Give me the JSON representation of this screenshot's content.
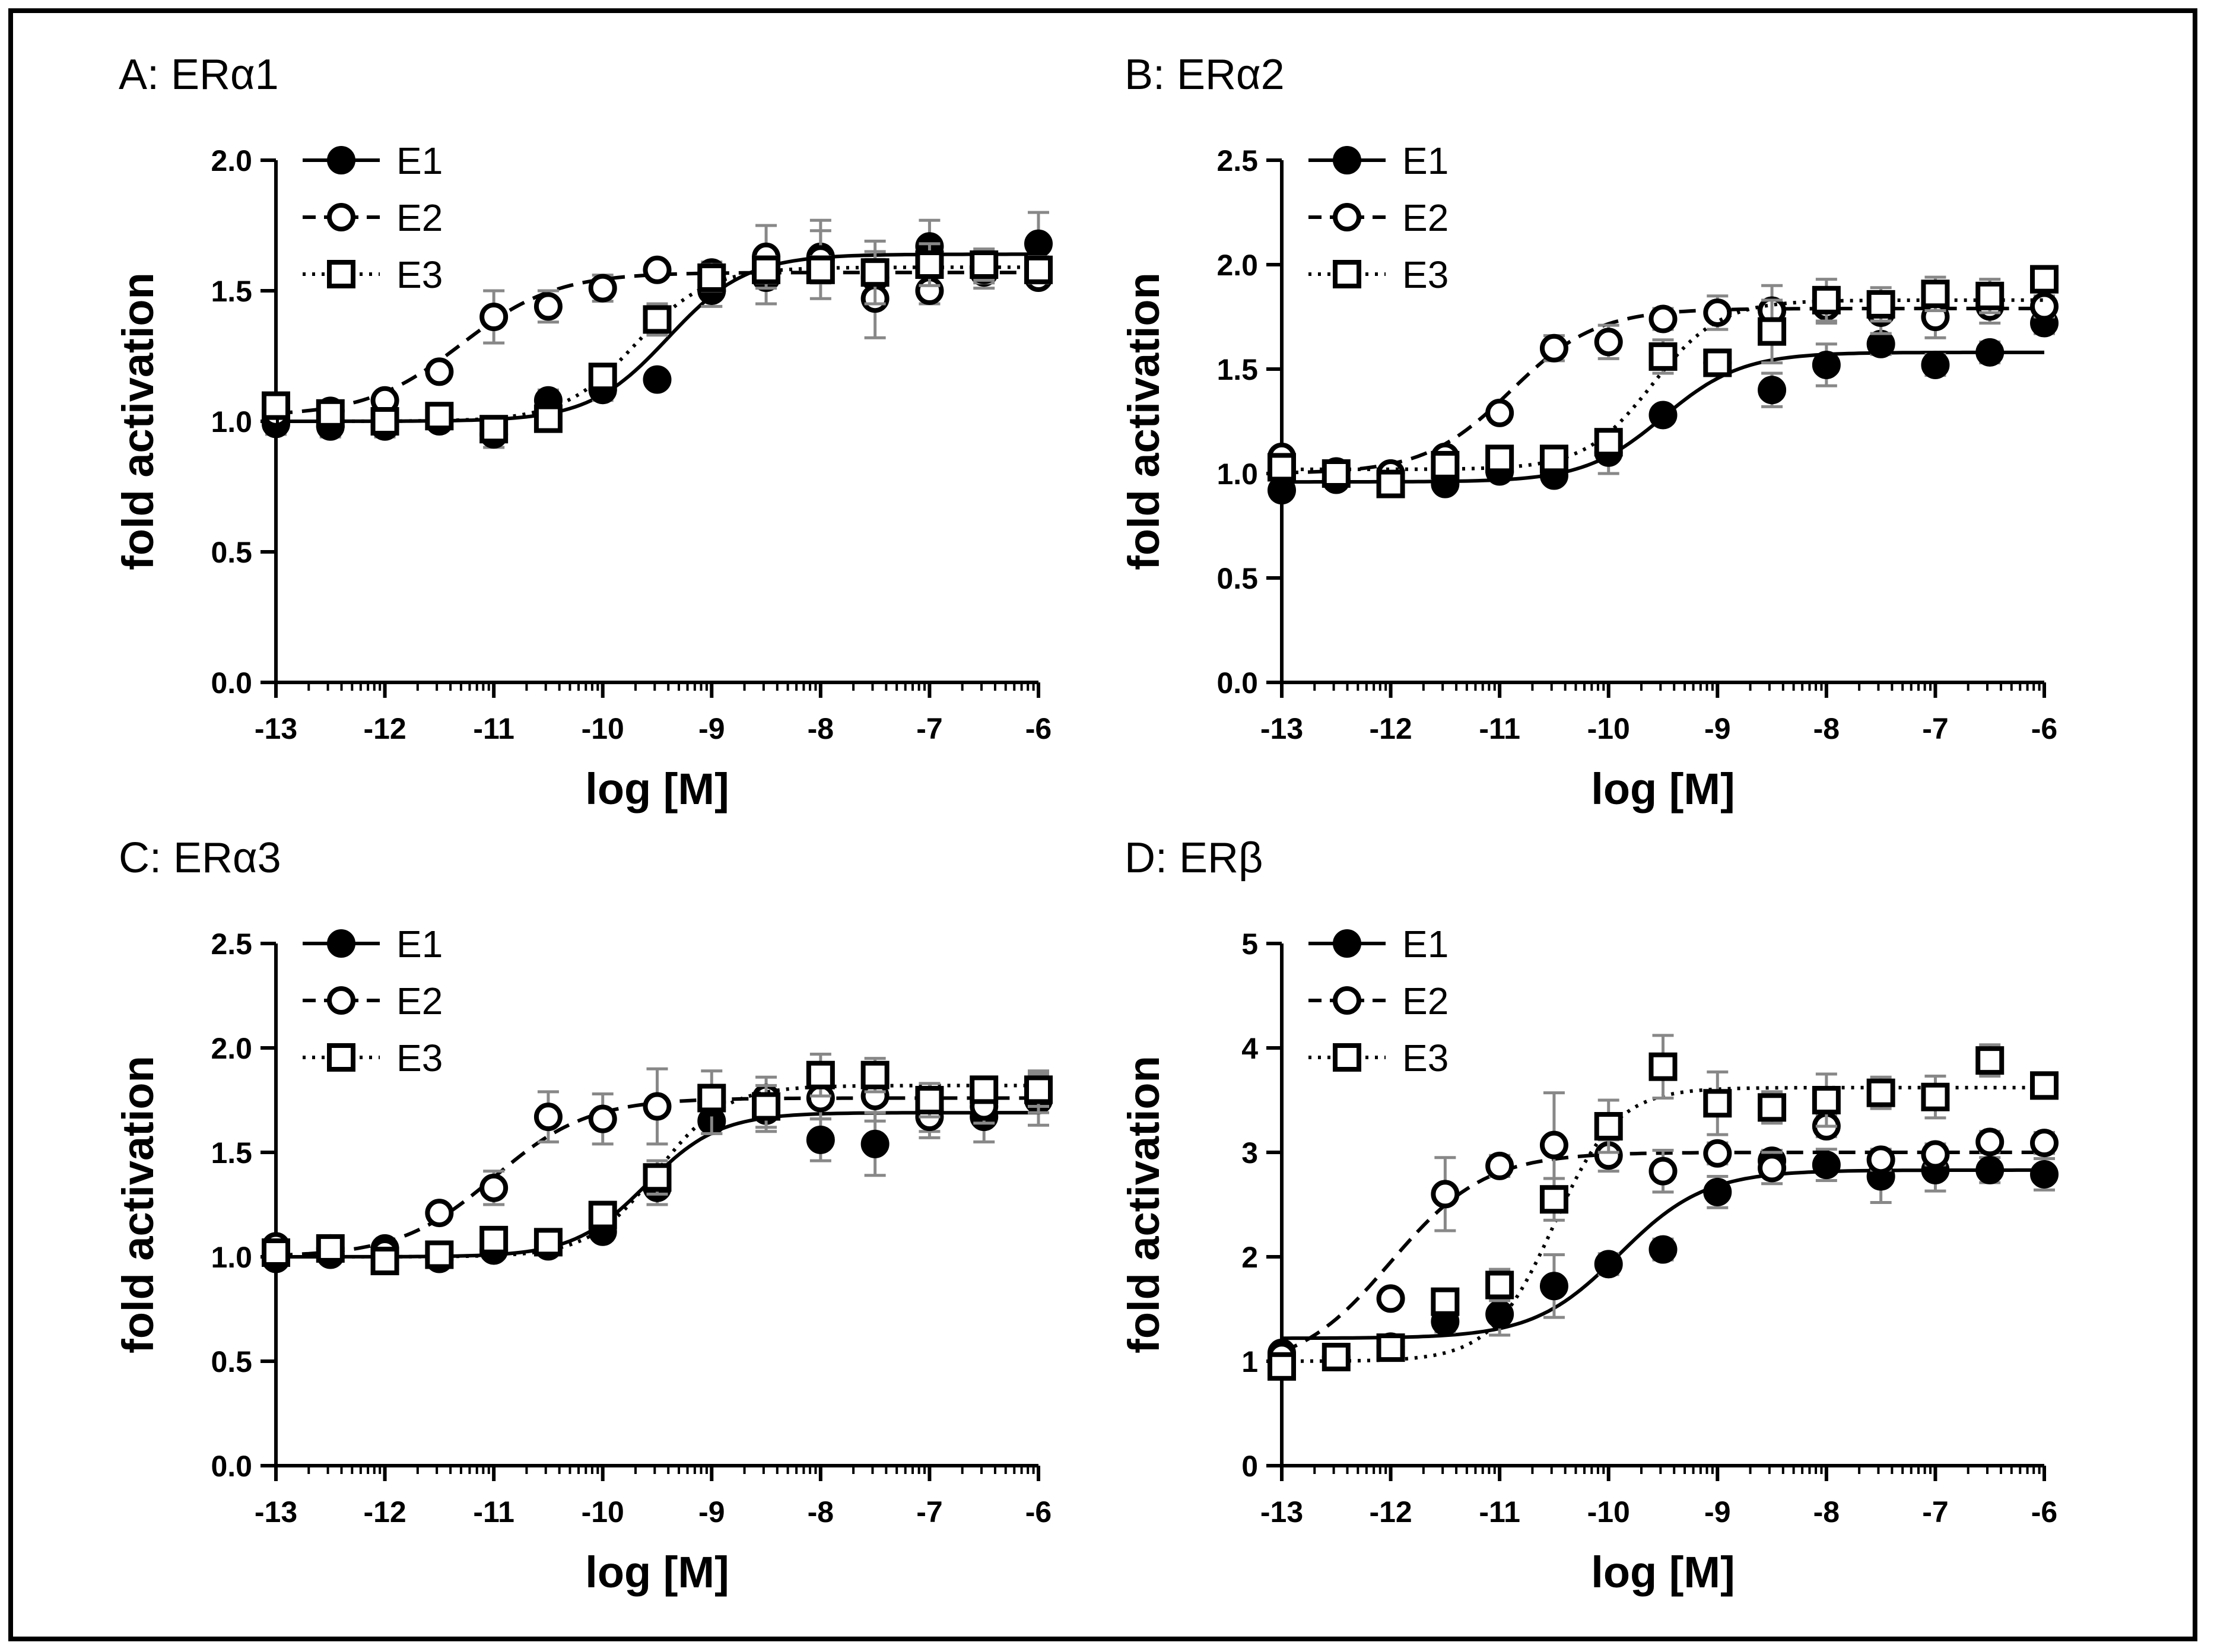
{
  "chart_data": [
    {
      "panel": "A",
      "title": "A: ERα1",
      "type": "scatter",
      "xlabel": "log [M]",
      "ylabel": "fold activation",
      "xlim": [
        -13,
        -6
      ],
      "ylim": [
        0,
        2.0
      ],
      "xticks": [
        -13,
        -12,
        -11,
        -10,
        -9,
        -8,
        -7,
        -6
      ],
      "xtick_labels": [
        "-13",
        "-12",
        "-11",
        "-10",
        "-9",
        "-8",
        "-7",
        "-6"
      ],
      "yticks": [
        0,
        0.5,
        1.0,
        1.5,
        2.0
      ],
      "ytick_labels": [
        "0.0",
        "0.5",
        "1.0",
        "1.5",
        "2.0"
      ],
      "x": [
        -13,
        -12.5,
        -12,
        -11.5,
        -11,
        -10.5,
        -10,
        -9.5,
        -9,
        -8.5,
        -8,
        -7.5,
        -7,
        -6.5,
        -6
      ],
      "series": [
        {
          "name": "E1",
          "marker": "filled-circle",
          "line": "solid",
          "values": [
            0.99,
            0.98,
            0.98,
            1.0,
            0.95,
            1.08,
            1.12,
            1.16,
            1.5,
            1.55,
            1.63,
            1.55,
            1.67,
            1.57,
            1.68
          ],
          "errors": [
            0.04,
            0.04,
            0.04,
            0.03,
            0.05,
            0.04,
            0.04,
            0.03,
            0.06,
            0.1,
            0.1,
            0.1,
            0.1,
            0.06,
            0.12
          ],
          "fit": {
            "bottom": 1.0,
            "top": 1.64,
            "logec50": -9.4,
            "hill": 1.2
          }
        },
        {
          "name": "E2",
          "marker": "open-circle",
          "line": "dashed",
          "values": [
            1.03,
            1.04,
            1.08,
            1.19,
            1.4,
            1.44,
            1.51,
            1.58,
            1.57,
            1.63,
            1.62,
            1.47,
            1.5,
            1.58,
            1.55
          ],
          "errors": [
            0.03,
            0.03,
            0.03,
            0.03,
            0.1,
            0.06,
            0.05,
            0.03,
            0.04,
            0.12,
            0.15,
            0.15,
            0.05,
            0.05,
            0.03
          ],
          "fit": {
            "bottom": 1.02,
            "top": 1.57,
            "logec50": -11.3,
            "hill": 1.0
          }
        },
        {
          "name": "E3",
          "marker": "open-square",
          "line": "dotted",
          "values": [
            1.06,
            1.03,
            1.0,
            1.02,
            0.97,
            1.01,
            1.17,
            1.39,
            1.55,
            1.58,
            1.58,
            1.57,
            1.6,
            1.6,
            1.58
          ],
          "errors": [
            0.03,
            0.03,
            0.03,
            0.03,
            0.03,
            0.03,
            0.04,
            0.06,
            0.05,
            0.05,
            0.05,
            0.12,
            0.08,
            0.06,
            0.05
          ],
          "fit": {
            "bottom": 1.0,
            "top": 1.59,
            "logec50": -9.7,
            "hill": 1.3
          }
        }
      ]
    },
    {
      "panel": "B",
      "title": "B: ERα2",
      "type": "scatter",
      "xlabel": "log [M]",
      "ylabel": "fold activation",
      "xlim": [
        -13,
        -6
      ],
      "ylim": [
        0,
        2.5
      ],
      "xticks": [
        -13,
        -12,
        -11,
        -10,
        -9,
        -8,
        -7,
        -6
      ],
      "xtick_labels": [
        "-13",
        "-12",
        "-11",
        "-10",
        "-9",
        "-8",
        "-7",
        "-6"
      ],
      "yticks": [
        0,
        0.5,
        1.0,
        1.5,
        2.0,
        2.5
      ],
      "ytick_labels": [
        "0.0",
        "0.5",
        "1.0",
        "1.5",
        "2.0",
        "2.5"
      ],
      "x": [
        -13,
        -12.5,
        -12,
        -11.5,
        -11,
        -10.5,
        -10,
        -9.5,
        -9,
        -8.5,
        -8,
        -7.5,
        -7,
        -6.5,
        -6
      ],
      "series": [
        {
          "name": "E1",
          "marker": "filled-circle",
          "line": "solid",
          "values": [
            0.92,
            0.97,
            1.0,
            0.95,
            1.01,
            0.99,
            1.1,
            1.28,
            1.53,
            1.4,
            1.52,
            1.62,
            1.52,
            1.58,
            1.72
          ],
          "errors": [
            0.04,
            0.04,
            0.04,
            0.03,
            0.03,
            0.03,
            0.1,
            0.04,
            0.06,
            0.08,
            0.1,
            0.05,
            0.05,
            0.05,
            0.05
          ],
          "fit": {
            "bottom": 0.96,
            "top": 1.58,
            "logec50": -9.5,
            "hill": 1.2
          }
        },
        {
          "name": "E2",
          "marker": "open-circle",
          "line": "dashed",
          "values": [
            1.08,
            1.01,
            1.0,
            1.08,
            1.29,
            1.6,
            1.63,
            1.74,
            1.77,
            1.78,
            1.8,
            1.77,
            1.75,
            1.8,
            1.8
          ],
          "errors": [
            0.04,
            0.03,
            0.03,
            0.03,
            0.04,
            0.06,
            0.08,
            0.05,
            0.08,
            0.12,
            0.08,
            0.1,
            0.1,
            0.08,
            0.05
          ],
          "fit": {
            "bottom": 1.0,
            "top": 1.79,
            "logec50": -10.9,
            "hill": 1.1
          }
        },
        {
          "name": "E3",
          "marker": "open-square",
          "line": "dotted",
          "values": [
            1.03,
            1.0,
            0.95,
            1.04,
            1.07,
            1.07,
            1.15,
            1.56,
            1.53,
            1.68,
            1.83,
            1.81,
            1.86,
            1.85,
            1.93
          ],
          "errors": [
            0.03,
            0.03,
            0.03,
            0.03,
            0.03,
            0.03,
            0.05,
            0.08,
            0.06,
            0.15,
            0.1,
            0.08,
            0.08,
            0.08,
            0.05
          ],
          "fit": {
            "bottom": 1.02,
            "top": 1.83,
            "logec50": -9.6,
            "hill": 1.4
          }
        }
      ]
    },
    {
      "panel": "C",
      "title": "C: ERα3",
      "type": "scatter",
      "xlabel": "log [M]",
      "ylabel": "fold activation",
      "xlim": [
        -13,
        -6
      ],
      "ylim": [
        0,
        2.5
      ],
      "xticks": [
        -13,
        -12,
        -11,
        -10,
        -9,
        -8,
        -7,
        -6
      ],
      "xtick_labels": [
        "-13",
        "-12",
        "-11",
        "-10",
        "-9",
        "-8",
        "-7",
        "-6"
      ],
      "yticks": [
        0,
        0.5,
        1.0,
        1.5,
        2.0,
        2.5
      ],
      "ytick_labels": [
        "0.0",
        "0.5",
        "1.0",
        "1.5",
        "2.0",
        "2.5"
      ],
      "x": [
        -13,
        -12.5,
        -12,
        -11.5,
        -11,
        -10.5,
        -10,
        -9.5,
        -9,
        -8.5,
        -8,
        -7.5,
        -7,
        -6.5,
        -6
      ],
      "series": [
        {
          "name": "E1",
          "marker": "filled-circle",
          "line": "solid",
          "values": [
            0.99,
            1.01,
            1.04,
            0.99,
            1.03,
            1.05,
            1.12,
            1.33,
            1.65,
            1.7,
            1.56,
            1.54,
            1.7,
            1.67,
            1.75
          ],
          "errors": [
            0.03,
            0.03,
            0.03,
            0.03,
            0.03,
            0.03,
            0.04,
            0.08,
            0.06,
            0.1,
            0.1,
            0.15,
            0.1,
            0.12,
            0.12
          ],
          "fit": {
            "bottom": 1.0,
            "top": 1.69,
            "logec50": -9.6,
            "hill": 1.3
          }
        },
        {
          "name": "E2",
          "marker": "open-circle",
          "line": "dashed",
          "values": [
            1.05,
            1.04,
            1.02,
            1.21,
            1.33,
            1.67,
            1.66,
            1.72,
            1.74,
            1.76,
            1.76,
            1.77,
            1.67,
            1.72,
            1.79
          ],
          "errors": [
            0.03,
            0.03,
            0.03,
            0.03,
            0.08,
            0.12,
            0.12,
            0.18,
            0.15,
            0.1,
            0.1,
            0.12,
            0.1,
            0.08,
            0.1
          ],
          "fit": {
            "bottom": 1.0,
            "top": 1.76,
            "logec50": -11.0,
            "hill": 1.0
          }
        },
        {
          "name": "E3",
          "marker": "open-square",
          "line": "dotted",
          "values": [
            1.02,
            1.04,
            0.98,
            1.01,
            1.08,
            1.07,
            1.2,
            1.38,
            1.76,
            1.72,
            1.87,
            1.87,
            1.75,
            1.8,
            1.8
          ],
          "errors": [
            0.03,
            0.03,
            0.03,
            0.03,
            0.03,
            0.03,
            0.04,
            0.08,
            0.06,
            0.1,
            0.1,
            0.08,
            0.08,
            0.06,
            0.08
          ],
          "fit": {
            "bottom": 1.0,
            "top": 1.82,
            "logec50": -9.5,
            "hill": 1.4
          }
        }
      ]
    },
    {
      "panel": "D",
      "title": "D: ERβ",
      "type": "scatter",
      "xlabel": "log [M]",
      "ylabel": "fold activation",
      "xlim": [
        -13,
        -6
      ],
      "ylim": [
        0,
        5
      ],
      "xticks": [
        -13,
        -12,
        -11,
        -10,
        -9,
        -8,
        -7,
        -6
      ],
      "xtick_labels": [
        "-13",
        "-12",
        "-11",
        "-10",
        "-9",
        "-8",
        "-7",
        "-6"
      ],
      "yticks": [
        0,
        1,
        2,
        3,
        4,
        5
      ],
      "ytick_labels": [
        "0",
        "1",
        "2",
        "3",
        "4",
        "5"
      ],
      "x": [
        -13,
        -12.5,
        -12,
        -11.5,
        -11,
        -10.5,
        -10,
        -9.5,
        -9,
        -8.5,
        -8,
        -7.5,
        -7,
        -6.5,
        -6
      ],
      "series": [
        {
          "name": "E1",
          "marker": "filled-circle",
          "line": "solid",
          "values": [
            1.08,
            1.04,
            1.14,
            1.38,
            1.45,
            1.72,
            1.93,
            2.07,
            2.62,
            2.92,
            2.88,
            2.77,
            2.83,
            2.83,
            2.79
          ],
          "errors": [
            0.05,
            0.05,
            0.08,
            0.1,
            0.2,
            0.3,
            0.1,
            0.1,
            0.15,
            0.1,
            0.15,
            0.25,
            0.2,
            0.12,
            0.15
          ],
          "fit": {
            "bottom": 1.22,
            "top": 2.83,
            "logec50": -9.9,
            "hill": 1.1
          }
        },
        {
          "name": "E2",
          "marker": "open-circle",
          "line": "dashed",
          "values": [
            1.05,
            1.04,
            1.6,
            2.6,
            2.87,
            3.07,
            2.97,
            2.82,
            2.99,
            2.85,
            3.25,
            2.93,
            2.98,
            3.1,
            3.09
          ],
          "errors": [
            0.05,
            0.05,
            0.05,
            0.35,
            0.1,
            0.5,
            0.15,
            0.2,
            0.1,
            0.15,
            0.1,
            0.1,
            0.1,
            0.1,
            0.1
          ],
          "fit": {
            "bottom": 0.9,
            "top": 3.0,
            "logec50": -12.0,
            "hill": 1.0
          }
        },
        {
          "name": "E3",
          "marker": "open-square",
          "line": "dotted",
          "values": [
            0.95,
            1.04,
            1.13,
            1.57,
            1.73,
            2.55,
            3.25,
            3.82,
            3.47,
            3.43,
            3.5,
            3.57,
            3.53,
            3.88,
            3.64
          ],
          "errors": [
            0.05,
            0.05,
            0.08,
            0.1,
            0.15,
            0.2,
            0.25,
            0.3,
            0.3,
            0.15,
            0.25,
            0.15,
            0.2,
            0.15,
            0.1
          ],
          "fit": {
            "bottom": 1.0,
            "top": 3.62,
            "logec50": -10.5,
            "hill": 1.5
          }
        }
      ]
    }
  ]
}
